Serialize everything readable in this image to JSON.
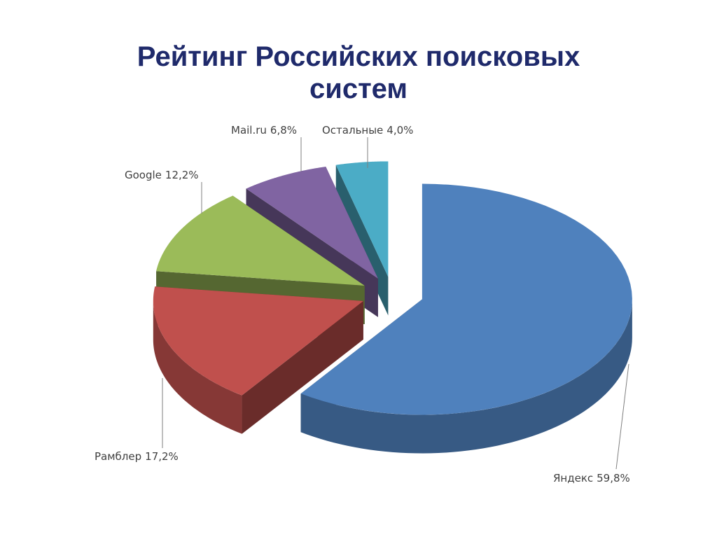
{
  "chart_data": {
    "type": "pie3d",
    "title": "Рейтинг Российских поисковых систем",
    "categories": [
      "Яндекс",
      "Рамблер",
      "Google",
      "Mail.ru",
      "Остальные"
    ],
    "values": [
      59.8,
      17.2,
      12.2,
      6.8,
      4.0
    ],
    "value_labels": [
      "59,8%",
      "17,2%",
      "12,2%",
      "6,8%",
      "4,0%"
    ],
    "colors": [
      "#4f81bd",
      "#c0504d",
      "#9bbb59",
      "#8064a2",
      "#4bacc6"
    ]
  }
}
